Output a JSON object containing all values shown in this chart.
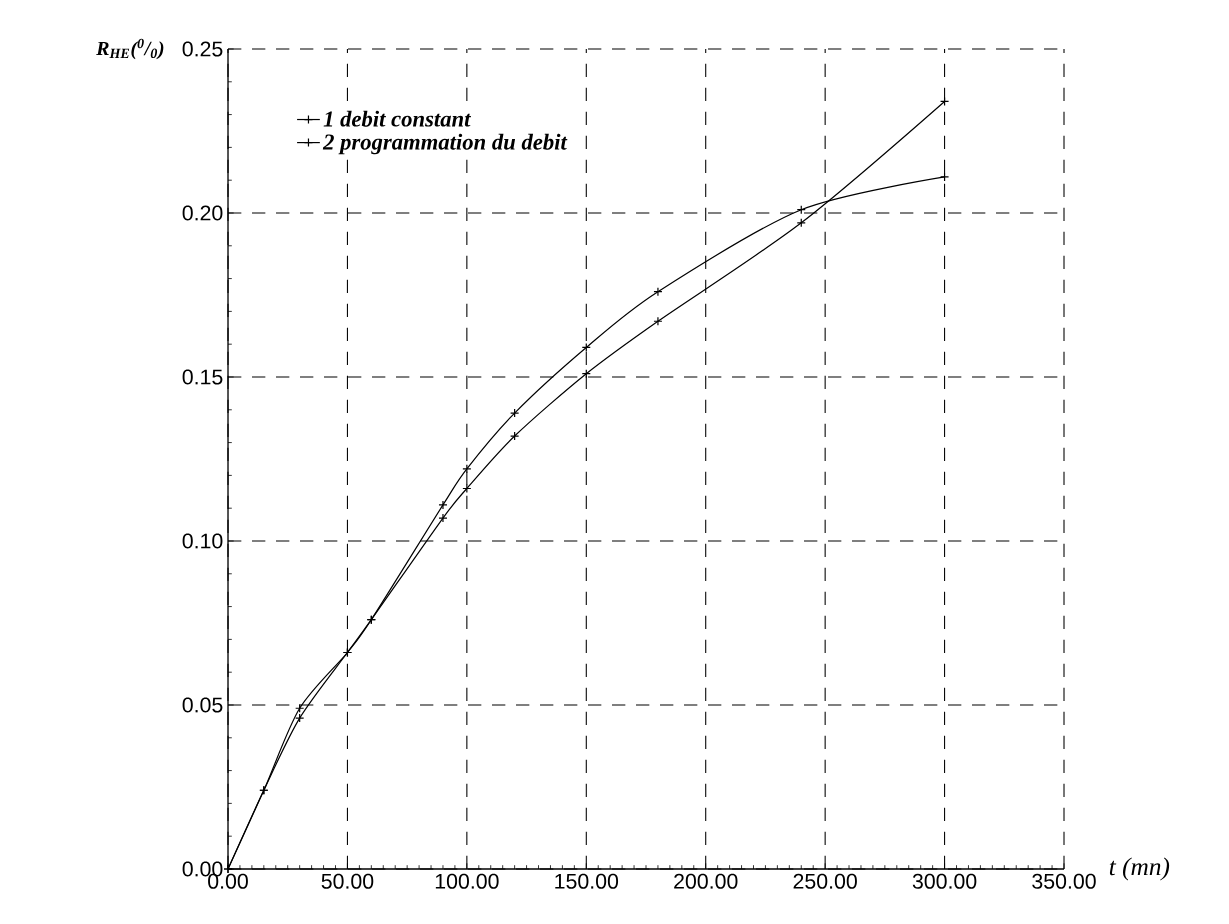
{
  "chart_data": {
    "type": "line",
    "xlabel": "t (mn)",
    "ylabel": "R$_{HE}$($^{0}$/$_{0}$)",
    "xlim": [
      0,
      350
    ],
    "ylim": [
      0,
      0.25
    ],
    "xticks": [
      {
        "value": 0,
        "label": "0.00"
      },
      {
        "value": 50,
        "label": "50.00"
      },
      {
        "value": 100,
        "label": "100.00"
      },
      {
        "value": 150,
        "label": "150.00"
      },
      {
        "value": 200,
        "label": "200.00"
      },
      {
        "value": 250,
        "label": "250.00"
      },
      {
        "value": 300,
        "label": "300.00"
      },
      {
        "value": 350,
        "label": "350.00"
      }
    ],
    "yticks": [
      {
        "value": 0,
        "label": "0.00"
      },
      {
        "value": 0.05,
        "label": "0.05"
      },
      {
        "value": 0.1,
        "label": "0.10"
      },
      {
        "value": 0.15,
        "label": "0.15"
      },
      {
        "value": 0.2,
        "label": "0.20"
      },
      {
        "value": 0.25,
        "label": "0.25"
      }
    ],
    "grid": true,
    "legend": "top left",
    "marker": "cross",
    "line_style": "solid",
    "series": [
      {
        "name": "1 debit constant",
        "color": "#000000",
        "x": [
          0,
          15,
          30,
          50,
          60,
          90,
          100,
          120,
          150,
          180,
          240,
          300
        ],
        "values": [
          0,
          0.024,
          0.046,
          0.066,
          0.076,
          0.107,
          0.116,
          0.132,
          0.151,
          0.167,
          0.197,
          0.234
        ]
      },
      {
        "name": "2 programmation du debit",
        "color": "#000000",
        "x": [
          0,
          15,
          30,
          50,
          60,
          90,
          100,
          120,
          150,
          180,
          240,
          300
        ],
        "values": [
          0,
          0.024,
          0.049,
          0.066,
          0.076,
          0.111,
          0.122,
          0.139,
          0.159,
          0.176,
          0.201,
          0.211
        ]
      }
    ]
  }
}
